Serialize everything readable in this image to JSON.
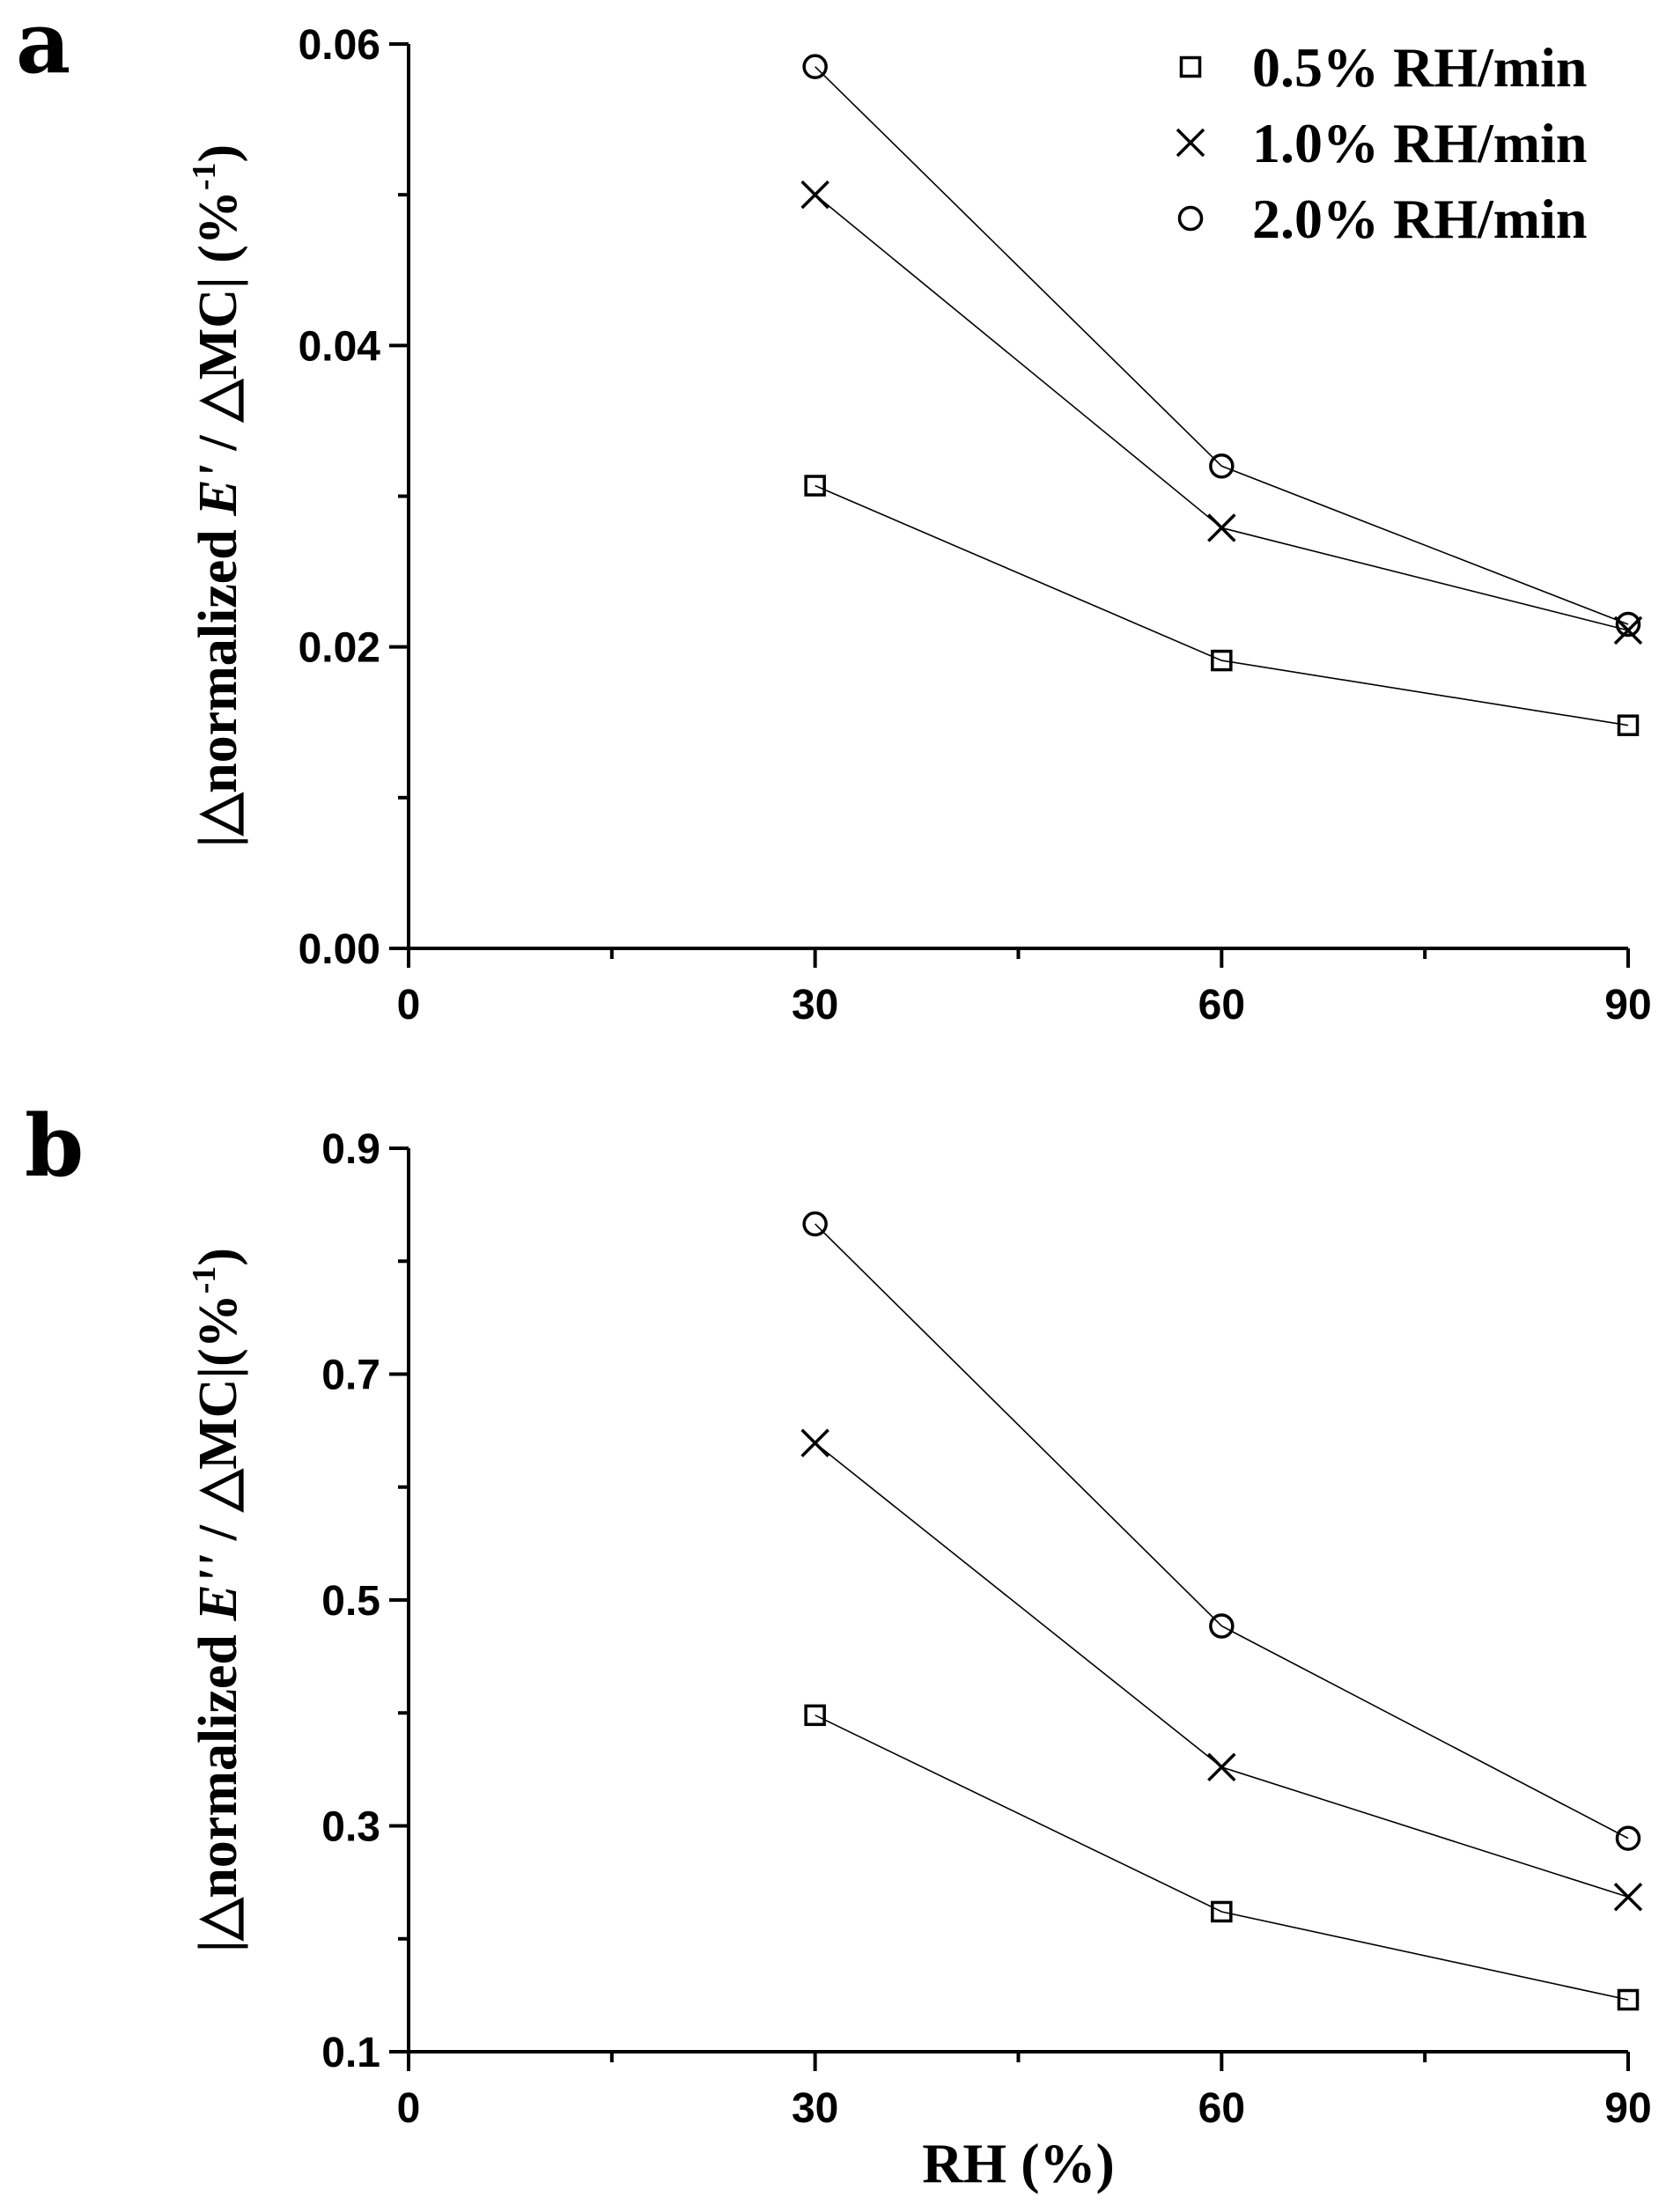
{
  "chart_data": [
    {
      "type": "line",
      "panel_label": "a",
      "ylabel": "|△normalized E' / △MC| (%⁻¹)",
      "ylabel_parts": {
        "pre": "|△normalized ",
        "italic": "E'",
        "post": " / △MC| (%",
        "sup": "-1",
        "close": ")"
      },
      "xlabel": "",
      "xlim": [
        0,
        90
      ],
      "ylim": [
        0,
        0.06
      ],
      "xticks": [
        0,
        30,
        60,
        90
      ],
      "xtick_labels": [
        "0",
        "30",
        "60",
        "90"
      ],
      "yticks": [
        0,
        0.02,
        0.04,
        0.06
      ],
      "ytick_labels": [
        "0.00",
        "0.02",
        "0.04",
        "0.06"
      ],
      "legend_position": "top-right",
      "x": [
        30,
        60,
        90
      ],
      "series": [
        {
          "name": "0.5% RH/min",
          "marker": "square",
          "values": [
            0.0307,
            0.0191,
            0.0148
          ]
        },
        {
          "name": "1.0% RH/min",
          "marker": "cross",
          "values": [
            0.05,
            0.0279,
            0.0211
          ]
        },
        {
          "name": "2.0% RH/min",
          "marker": "circle",
          "values": [
            0.0585,
            0.032,
            0.0215
          ]
        }
      ]
    },
    {
      "type": "line",
      "panel_label": "b",
      "ylabel": "|△normalized E'' / △MC|(%⁻¹)",
      "ylabel_parts": {
        "pre": "|△normalized ",
        "italic": "E''",
        "post": " / △MC|(%",
        "sup": "-1",
        "close": ")"
      },
      "xlabel": "RH (%)",
      "xlim": [
        0,
        90
      ],
      "ylim": [
        0.1,
        0.9
      ],
      "xticks": [
        0,
        30,
        60,
        90
      ],
      "xtick_labels": [
        "0",
        "30",
        "60",
        "90"
      ],
      "yticks": [
        0.1,
        0.3,
        0.5,
        0.7,
        0.9
      ],
      "ytick_labels": [
        "0.1",
        "0.3",
        "0.5",
        "0.7",
        "0.9"
      ],
      "legend_position": "none",
      "x": [
        30,
        60,
        90
      ],
      "series": [
        {
          "name": "0.5% RH/min",
          "marker": "square",
          "values": [
            0.398,
            0.224,
            0.146
          ]
        },
        {
          "name": "1.0% RH/min",
          "marker": "cross",
          "values": [
            0.639,
            0.352,
            0.237
          ]
        },
        {
          "name": "2.0% RH/min",
          "marker": "circle",
          "values": [
            0.833,
            0.477,
            0.289
          ]
        }
      ]
    }
  ]
}
